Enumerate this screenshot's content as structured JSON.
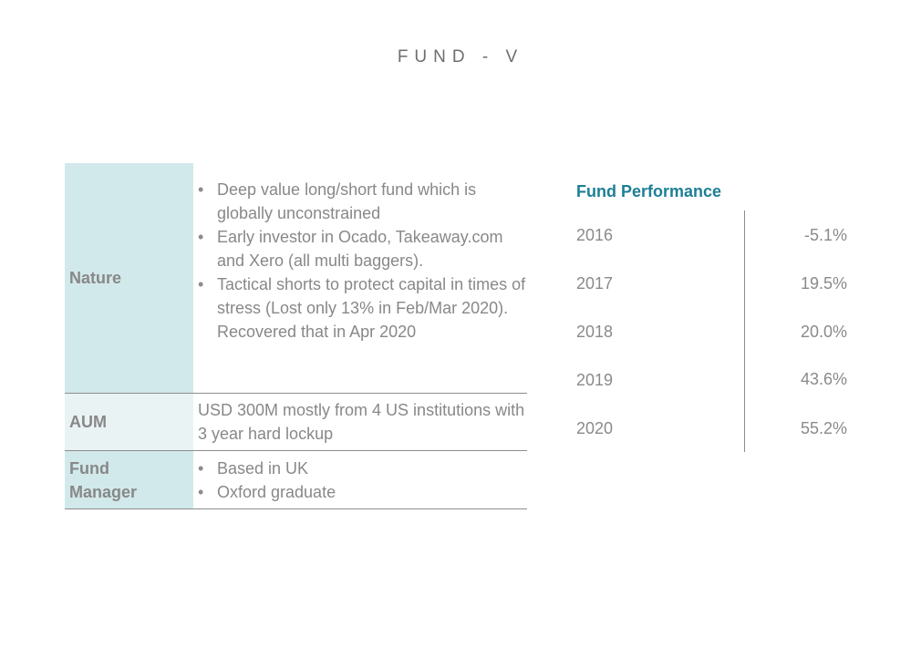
{
  "page": {
    "title": "FUND - V"
  },
  "fund_table": {
    "rows": [
      {
        "label": "Nature",
        "bullets": [
          "Deep value long/short fund which is globally unconstrained",
          "Early investor in Ocado, Takeaway.com and Xero (all multi baggers).",
          "Tactical shorts to protect capital in times of stress (Lost only 13% in Feb/Mar 2020). Recovered that in Apr 2020"
        ]
      },
      {
        "label": "AUM",
        "text": "USD 300M mostly from 4 US institutions with 3 year hard lockup"
      },
      {
        "label_line1": "Fund",
        "label_line2": "Manager",
        "bullets": [
          "Based in UK",
          "Oxford graduate"
        ]
      }
    ]
  },
  "performance": {
    "title": "Fund Performance",
    "rows": [
      {
        "year": "2016",
        "value": "-5.1%"
      },
      {
        "year": "2017",
        "value": "19.5%"
      },
      {
        "year": "2018",
        "value": "20.0%"
      },
      {
        "year": "2019",
        "value": "43.6%"
      },
      {
        "year": "2020",
        "value": "55.2%"
      }
    ]
  },
  "colors": {
    "accent": "#1c7f96",
    "label_bg_dark": "#d2e9eb",
    "label_bg_light": "#e9f3f4",
    "text": "#888888"
  }
}
